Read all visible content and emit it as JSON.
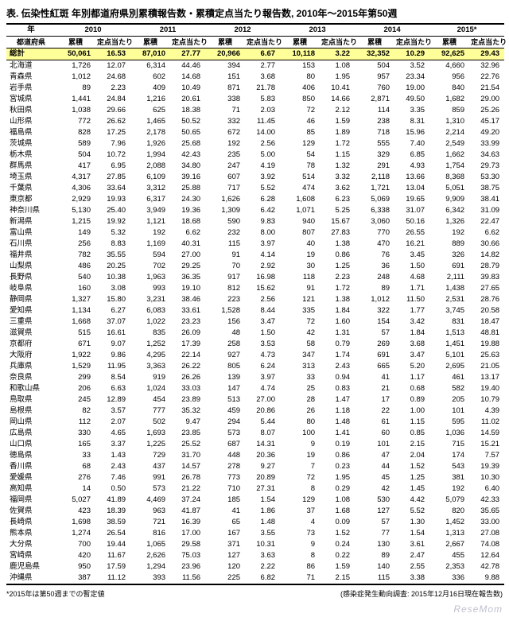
{
  "title": "表. 伝染性紅斑 年別都道府県別累積報告数・累積定点当たり報告数, 2010年～2015年第50週",
  "year_label": "年",
  "pref_label": "都道府県",
  "sub_labels": {
    "cum": "累積",
    "per": "定点当たり"
  },
  "years": [
    "2010",
    "2011",
    "2012",
    "2013",
    "2014",
    "2015"
  ],
  "year_note": "*",
  "total_label": "総計",
  "totals": [
    [
      "50,061",
      "16.53"
    ],
    [
      "87,010",
      "27.77"
    ],
    [
      "20,966",
      "6.67"
    ],
    [
      "10,118",
      "3.22"
    ],
    [
      "32,352",
      "10.29"
    ],
    [
      "92,625",
      "29.43"
    ]
  ],
  "rows": [
    {
      "p": "北海道",
      "v": [
        [
          "1,726",
          "12.07"
        ],
        [
          "6,314",
          "44.46"
        ],
        [
          "394",
          "2.77"
        ],
        [
          "153",
          "1.08"
        ],
        [
          "504",
          "3.52"
        ],
        [
          "4,660",
          "32.96"
        ]
      ]
    },
    {
      "p": "青森県",
      "v": [
        [
          "1,012",
          "24.68"
        ],
        [
          "602",
          "14.68"
        ],
        [
          "151",
          "3.68"
        ],
        [
          "80",
          "1.95"
        ],
        [
          "957",
          "23.34"
        ],
        [
          "956",
          "22.76"
        ]
      ]
    },
    {
      "p": "岩手県",
      "v": [
        [
          "89",
          "2.23"
        ],
        [
          "409",
          "10.49"
        ],
        [
          "871",
          "21.78"
        ],
        [
          "406",
          "10.41"
        ],
        [
          "760",
          "19.00"
        ],
        [
          "840",
          "21.54"
        ]
      ]
    },
    {
      "p": "宮城県",
      "v": [
        [
          "1,441",
          "24.84"
        ],
        [
          "1,216",
          "20.61"
        ],
        [
          "338",
          "5.83"
        ],
        [
          "850",
          "14.66"
        ],
        [
          "2,871",
          "49.50"
        ],
        [
          "1,682",
          "29.00"
        ]
      ]
    },
    {
      "p": "秋田県",
      "v": [
        [
          "1,038",
          "29.66"
        ],
        [
          "625",
          "18.38"
        ],
        [
          "71",
          "2.03"
        ],
        [
          "72",
          "2.12"
        ],
        [
          "114",
          "3.35"
        ],
        [
          "859",
          "25.26"
        ]
      ]
    },
    {
      "p": "山形県",
      "v": [
        [
          "772",
          "26.62"
        ],
        [
          "1,465",
          "50.52"
        ],
        [
          "332",
          "11.45"
        ],
        [
          "46",
          "1.59"
        ],
        [
          "238",
          "8.31"
        ],
        [
          "1,310",
          "45.17"
        ]
      ]
    },
    {
      "p": "福島県",
      "v": [
        [
          "828",
          "17.25"
        ],
        [
          "2,178",
          "50.65"
        ],
        [
          "672",
          "14.00"
        ],
        [
          "85",
          "1.89"
        ],
        [
          "718",
          "15.96"
        ],
        [
          "2,214",
          "49.20"
        ]
      ]
    },
    {
      "p": "茨城県",
      "v": [
        [
          "589",
          "7.96"
        ],
        [
          "1,926",
          "25.68"
        ],
        [
          "192",
          "2.56"
        ],
        [
          "129",
          "1.72"
        ],
        [
          "555",
          "7.40"
        ],
        [
          "2,549",
          "33.99"
        ]
      ]
    },
    {
      "p": "栃木県",
      "v": [
        [
          "504",
          "10.72"
        ],
        [
          "1,994",
          "42.43"
        ],
        [
          "235",
          "5.00"
        ],
        [
          "54",
          "1.15"
        ],
        [
          "329",
          "6.85"
        ],
        [
          "1,662",
          "34.63"
        ]
      ]
    },
    {
      "p": "群馬県",
      "v": [
        [
          "417",
          "6.95"
        ],
        [
          "2,088",
          "34.80"
        ],
        [
          "247",
          "4.19"
        ],
        [
          "78",
          "1.32"
        ],
        [
          "291",
          "4.93"
        ],
        [
          "1,754",
          "29.73"
        ]
      ]
    },
    {
      "p": "埼玉県",
      "v": [
        [
          "4,317",
          "27.85"
        ],
        [
          "6,109",
          "39.16"
        ],
        [
          "607",
          "3.92"
        ],
        [
          "514",
          "3.32"
        ],
        [
          "2,118",
          "13.66"
        ],
        [
          "8,368",
          "53.30"
        ]
      ]
    },
    {
      "p": "千葉県",
      "v": [
        [
          "4,306",
          "33.64"
        ],
        [
          "3,312",
          "25.88"
        ],
        [
          "717",
          "5.52"
        ],
        [
          "474",
          "3.62"
        ],
        [
          "1,721",
          "13.04"
        ],
        [
          "5,051",
          "38.75"
        ]
      ]
    },
    {
      "p": "東京都",
      "v": [
        [
          "2,929",
          "19.93"
        ],
        [
          "6,317",
          "24.30"
        ],
        [
          "1,626",
          "6.28"
        ],
        [
          "1,608",
          "6.23"
        ],
        [
          "5,069",
          "19.65"
        ],
        [
          "9,909",
          "38.41"
        ]
      ]
    },
    {
      "p": "神奈川県",
      "v": [
        [
          "5,130",
          "25.40"
        ],
        [
          "3,949",
          "19.36"
        ],
        [
          "1,309",
          "6.42"
        ],
        [
          "1,071",
          "5.25"
        ],
        [
          "6,338",
          "31.07"
        ],
        [
          "6,342",
          "31.09"
        ]
      ]
    },
    {
      "p": "新潟県",
      "v": [
        [
          "1,215",
          "19.92"
        ],
        [
          "1,121",
          "18.68"
        ],
        [
          "590",
          "9.83"
        ],
        [
          "940",
          "15.67"
        ],
        [
          "3,060",
          "50.16"
        ],
        [
          "1,326",
          "22.47"
        ]
      ]
    },
    {
      "p": "富山県",
      "v": [
        [
          "149",
          "5.32"
        ],
        [
          "192",
          "6.62"
        ],
        [
          "232",
          "8.00"
        ],
        [
          "807",
          "27.83"
        ],
        [
          "770",
          "26.55"
        ],
        [
          "192",
          "6.62"
        ]
      ]
    },
    {
      "p": "石川県",
      "v": [
        [
          "256",
          "8.83"
        ],
        [
          "1,169",
          "40.31"
        ],
        [
          "115",
          "3.97"
        ],
        [
          "40",
          "1.38"
        ],
        [
          "470",
          "16.21"
        ],
        [
          "889",
          "30.66"
        ]
      ]
    },
    {
      "p": "福井県",
      "v": [
        [
          "782",
          "35.55"
        ],
        [
          "594",
          "27.00"
        ],
        [
          "91",
          "4.14"
        ],
        [
          "19",
          "0.86"
        ],
        [
          "76",
          "3.45"
        ],
        [
          "326",
          "14.82"
        ]
      ]
    },
    {
      "p": "山梨県",
      "v": [
        [
          "486",
          "20.25"
        ],
        [
          "702",
          "29.25"
        ],
        [
          "70",
          "2.92"
        ],
        [
          "30",
          "1.25"
        ],
        [
          "36",
          "1.50"
        ],
        [
          "691",
          "28.79"
        ]
      ]
    },
    {
      "p": "長野県",
      "v": [
        [
          "540",
          "10.38"
        ],
        [
          "1,963",
          "36.35"
        ],
        [
          "917",
          "16.98"
        ],
        [
          "118",
          "2.23"
        ],
        [
          "248",
          "4.68"
        ],
        [
          "2,111",
          "39.83"
        ]
      ]
    },
    {
      "p": "岐阜県",
      "v": [
        [
          "160",
          "3.08"
        ],
        [
          "993",
          "19.10"
        ],
        [
          "812",
          "15.62"
        ],
        [
          "91",
          "1.72"
        ],
        [
          "89",
          "1.71"
        ],
        [
          "1,438",
          "27.65"
        ]
      ]
    },
    {
      "p": "静岡県",
      "v": [
        [
          "1,327",
          "15.80"
        ],
        [
          "3,231",
          "38.46"
        ],
        [
          "223",
          "2.56"
        ],
        [
          "121",
          "1.38"
        ],
        [
          "1,012",
          "11.50"
        ],
        [
          "2,531",
          "28.76"
        ]
      ]
    },
    {
      "p": "愛知県",
      "v": [
        [
          "1,134",
          "6.27"
        ],
        [
          "6,083",
          "33.61"
        ],
        [
          "1,528",
          "8.44"
        ],
        [
          "335",
          "1.84"
        ],
        [
          "322",
          "1.77"
        ],
        [
          "3,745",
          "20.58"
        ]
      ]
    },
    {
      "p": "三重県",
      "v": [
        [
          "1,668",
          "37.07"
        ],
        [
          "1,022",
          "23.23"
        ],
        [
          "156",
          "3.47"
        ],
        [
          "72",
          "1.60"
        ],
        [
          "154",
          "3.42"
        ],
        [
          "831",
          "18.47"
        ]
      ]
    },
    {
      "p": "滋賀県",
      "v": [
        [
          "515",
          "16.61"
        ],
        [
          "835",
          "26.09"
        ],
        [
          "48",
          "1.50"
        ],
        [
          "42",
          "1.31"
        ],
        [
          "57",
          "1.84"
        ],
        [
          "1,513",
          "48.81"
        ]
      ]
    },
    {
      "p": "京都府",
      "v": [
        [
          "671",
          "9.07"
        ],
        [
          "1,252",
          "17.39"
        ],
        [
          "258",
          "3.53"
        ],
        [
          "58",
          "0.79"
        ],
        [
          "269",
          "3.68"
        ],
        [
          "1,451",
          "19.88"
        ]
      ]
    },
    {
      "p": "大阪府",
      "v": [
        [
          "1,922",
          "9.86"
        ],
        [
          "4,295",
          "22.14"
        ],
        [
          "927",
          "4.73"
        ],
        [
          "347",
          "1.74"
        ],
        [
          "691",
          "3.47"
        ],
        [
          "5,101",
          "25.63"
        ]
      ]
    },
    {
      "p": "兵庫県",
      "v": [
        [
          "1,529",
          "11.95"
        ],
        [
          "3,363",
          "26.22"
        ],
        [
          "805",
          "6.24"
        ],
        [
          "313",
          "2.43"
        ],
        [
          "665",
          "5.20"
        ],
        [
          "2,695",
          "21.05"
        ]
      ]
    },
    {
      "p": "奈良県",
      "v": [
        [
          "299",
          "8.54"
        ],
        [
          "919",
          "26.26"
        ],
        [
          "139",
          "3.97"
        ],
        [
          "33",
          "0.94"
        ],
        [
          "41",
          "1.17"
        ],
        [
          "461",
          "13.17"
        ]
      ]
    },
    {
      "p": "和歌山県",
      "v": [
        [
          "206",
          "6.63"
        ],
        [
          "1,024",
          "33.03"
        ],
        [
          "147",
          "4.74"
        ],
        [
          "25",
          "0.83"
        ],
        [
          "21",
          "0.68"
        ],
        [
          "582",
          "19.40"
        ]
      ]
    },
    {
      "p": "鳥取県",
      "v": [
        [
          "245",
          "12.89"
        ],
        [
          "454",
          "23.89"
        ],
        [
          "513",
          "27.00"
        ],
        [
          "28",
          "1.47"
        ],
        [
          "17",
          "0.89"
        ],
        [
          "205",
          "10.79"
        ]
      ]
    },
    {
      "p": "島根県",
      "v": [
        [
          "82",
          "3.57"
        ],
        [
          "777",
          "35.32"
        ],
        [
          "459",
          "20.86"
        ],
        [
          "26",
          "1.18"
        ],
        [
          "22",
          "1.00"
        ],
        [
          "101",
          "4.39"
        ]
      ]
    },
    {
      "p": "岡山県",
      "v": [
        [
          "112",
          "2.07"
        ],
        [
          "502",
          "9.47"
        ],
        [
          "294",
          "5.44"
        ],
        [
          "80",
          "1.48"
        ],
        [
          "61",
          "1.15"
        ],
        [
          "595",
          "11.02"
        ]
      ]
    },
    {
      "p": "広島県",
      "v": [
        [
          "330",
          "4.65"
        ],
        [
          "1,693",
          "23.85"
        ],
        [
          "573",
          "8.07"
        ],
        [
          "100",
          "1.41"
        ],
        [
          "60",
          "0.85"
        ],
        [
          "1,036",
          "14.59"
        ]
      ]
    },
    {
      "p": "山口県",
      "v": [
        [
          "165",
          "3.37"
        ],
        [
          "1,225",
          "25.52"
        ],
        [
          "687",
          "14.31"
        ],
        [
          "9",
          "0.19"
        ],
        [
          "101",
          "2.15"
        ],
        [
          "715",
          "15.21"
        ]
      ]
    },
    {
      "p": "徳島県",
      "v": [
        [
          "33",
          "1.43"
        ],
        [
          "729",
          "31.70"
        ],
        [
          "448",
          "20.36"
        ],
        [
          "19",
          "0.86"
        ],
        [
          "47",
          "2.04"
        ],
        [
          "174",
          "7.57"
        ]
      ]
    },
    {
      "p": "香川県",
      "v": [
        [
          "68",
          "2.43"
        ],
        [
          "437",
          "14.57"
        ],
        [
          "278",
          "9.27"
        ],
        [
          "7",
          "0.23"
        ],
        [
          "44",
          "1.52"
        ],
        [
          "543",
          "19.39"
        ]
      ]
    },
    {
      "p": "愛媛県",
      "v": [
        [
          "276",
          "7.46"
        ],
        [
          "991",
          "26.78"
        ],
        [
          "773",
          "20.89"
        ],
        [
          "72",
          "1.95"
        ],
        [
          "45",
          "1.25"
        ],
        [
          "381",
          "10.30"
        ]
      ]
    },
    {
      "p": "高知県",
      "v": [
        [
          "14",
          "0.50"
        ],
        [
          "573",
          "21.22"
        ],
        [
          "710",
          "27.31"
        ],
        [
          "8",
          "0.29"
        ],
        [
          "42",
          "1.45"
        ],
        [
          "192",
          "6.40"
        ]
      ]
    },
    {
      "p": "福岡県",
      "v": [
        [
          "5,027",
          "41.89"
        ],
        [
          "4,469",
          "37.24"
        ],
        [
          "185",
          "1.54"
        ],
        [
          "129",
          "1.08"
        ],
        [
          "530",
          "4.42"
        ],
        [
          "5,079",
          "42.33"
        ]
      ]
    },
    {
      "p": "佐賀県",
      "v": [
        [
          "423",
          "18.39"
        ],
        [
          "963",
          "41.87"
        ],
        [
          "41",
          "1.86"
        ],
        [
          "37",
          "1.68"
        ],
        [
          "127",
          "5.52"
        ],
        [
          "820",
          "35.65"
        ]
      ]
    },
    {
      "p": "長崎県",
      "v": [
        [
          "1,698",
          "38.59"
        ],
        [
          "721",
          "16.39"
        ],
        [
          "65",
          "1.48"
        ],
        [
          "4",
          "0.09"
        ],
        [
          "57",
          "1.30"
        ],
        [
          "1,452",
          "33.00"
        ]
      ]
    },
    {
      "p": "熊本県",
      "v": [
        [
          "1,274",
          "26.54"
        ],
        [
          "816",
          "17.00"
        ],
        [
          "167",
          "3.55"
        ],
        [
          "73",
          "1.52"
        ],
        [
          "77",
          "1.54"
        ],
        [
          "1,313",
          "27.08"
        ]
      ]
    },
    {
      "p": "大分県",
      "v": [
        [
          "700",
          "19.44"
        ],
        [
          "1,065",
          "29.58"
        ],
        [
          "371",
          "10.31"
        ],
        [
          "9",
          "0.24"
        ],
        [
          "130",
          "3.61"
        ],
        [
          "2,667",
          "74.08"
        ]
      ]
    },
    {
      "p": "宮崎県",
      "v": [
        [
          "420",
          "11.67"
        ],
        [
          "2,626",
          "75.03"
        ],
        [
          "127",
          "3.63"
        ],
        [
          "8",
          "0.22"
        ],
        [
          "89",
          "2.47"
        ],
        [
          "455",
          "12.64"
        ]
      ]
    },
    {
      "p": "鹿児島県",
      "v": [
        [
          "950",
          "17.59"
        ],
        [
          "1,294",
          "23.96"
        ],
        [
          "120",
          "2.22"
        ],
        [
          "86",
          "1.59"
        ],
        [
          "140",
          "2.55"
        ],
        [
          "2,353",
          "42.78"
        ]
      ]
    },
    {
      "p": "沖縄県",
      "v": [
        [
          "387",
          "11.12"
        ],
        [
          "393",
          "11.56"
        ],
        [
          "225",
          "6.82"
        ],
        [
          "71",
          "2.15"
        ],
        [
          "115",
          "3.38"
        ],
        [
          "336",
          "9.88"
        ]
      ]
    }
  ],
  "footnote_left": "*2015年は第50週までの暫定値",
  "footnote_right": "(感染症発生動向調査: 2015年12月16日現在報告数)",
  "logo_text": "ReseMom"
}
